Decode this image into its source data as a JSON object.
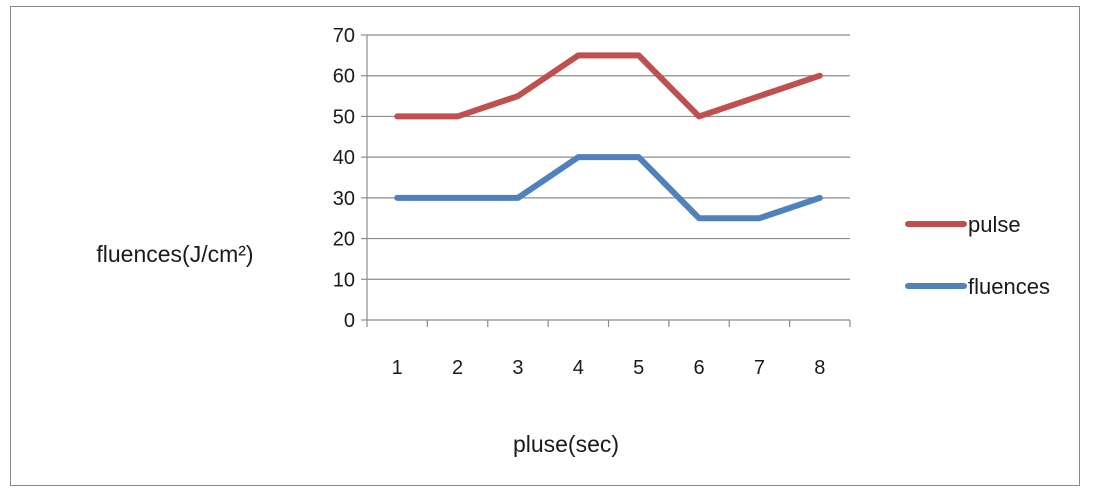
{
  "chart_data": {
    "type": "line",
    "title": "",
    "xlabel": "pluse(sec)",
    "ylabel": "fluences(J/cm²)",
    "categories": [
      "1",
      "2",
      "3",
      "4",
      "5",
      "6",
      "7",
      "8"
    ],
    "series": [
      {
        "name": "pulse",
        "color": "#c0504d",
        "values": [
          50,
          50,
          55,
          65,
          65,
          50,
          55,
          60
        ]
      },
      {
        "name": "fluences",
        "color": "#4f81bd",
        "values": [
          30,
          30,
          30,
          40,
          40,
          25,
          25,
          30
        ]
      }
    ],
    "yticks": [
      "0",
      "10",
      "20",
      "30",
      "40",
      "50",
      "60",
      "70"
    ],
    "ylim": [
      0,
      70
    ],
    "grid": "horizontal",
    "legend_position": "right"
  }
}
